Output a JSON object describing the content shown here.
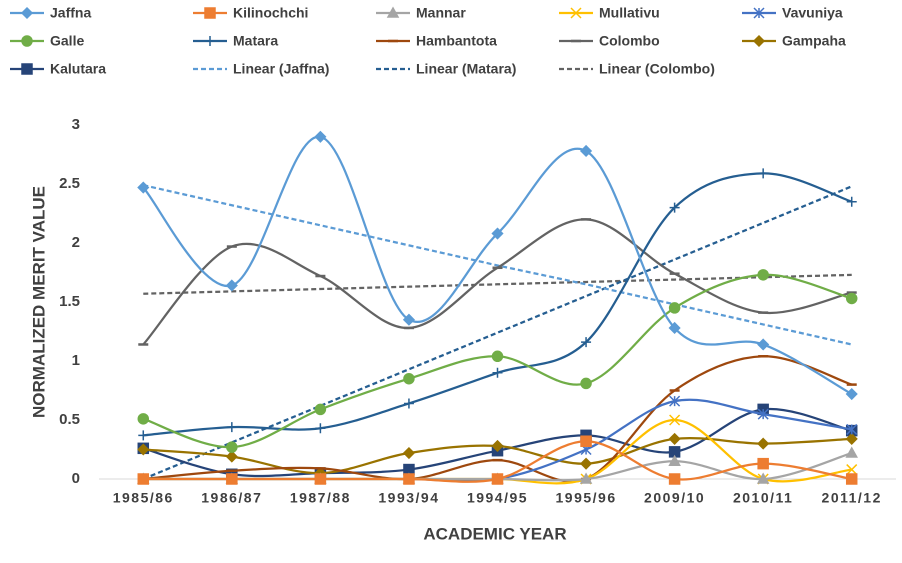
{
  "chart_data": {
    "type": "line",
    "smooth": true,
    "x_label": "ACADEMIC YEAR",
    "y_label": "NORMALIZED MERIT VALUE",
    "categories": [
      "1985/86",
      "1986/87",
      "1987/88",
      "1993/94",
      "1994/95",
      "1995/96",
      "2009/10",
      "2010/11",
      "2011/12"
    ],
    "ylim": [
      0,
      3
    ],
    "yticks": [
      0,
      0.5,
      1,
      1.5,
      2,
      2.5,
      3
    ],
    "grid": false,
    "legend": "top",
    "series": [
      {
        "name": "Jaffna",
        "color": "#5b9bd5",
        "marker": "diamond",
        "values": [
          2.47,
          1.64,
          2.9,
          1.35,
          2.08,
          2.78,
          1.28,
          1.14,
          0.72
        ]
      },
      {
        "name": "Kilinochchi",
        "color": "#ed7d31",
        "marker": "square",
        "values": [
          0,
          0,
          0,
          0,
          0,
          0.32,
          0,
          0.13,
          0
        ]
      },
      {
        "name": "Mannar",
        "color": "#a5a5a5",
        "marker": "triangle",
        "values": [
          0,
          0,
          0,
          0,
          0,
          0,
          0.15,
          0,
          0.22
        ]
      },
      {
        "name": "Mullativu",
        "color": "#ffc000",
        "marker": "x",
        "values": [
          0,
          0,
          0,
          0,
          0,
          0,
          0.5,
          0,
          0.08
        ]
      },
      {
        "name": "Vavuniya",
        "color": "#4472c4",
        "marker": "star",
        "values": [
          0,
          0,
          0,
          0,
          0,
          0.25,
          0.66,
          0.55,
          0.42
        ]
      },
      {
        "name": "Galle",
        "color": "#70ad47",
        "marker": "circle",
        "values": [
          0.51,
          0.27,
          0.59,
          0.85,
          1.04,
          0.81,
          1.45,
          1.73,
          1.53
        ]
      },
      {
        "name": "Matara",
        "color": "#255e91",
        "marker": "plus",
        "values": [
          0.37,
          0.44,
          0.43,
          0.64,
          0.9,
          1.16,
          2.3,
          2.59,
          2.35
        ]
      },
      {
        "name": "Hambantota",
        "color": "#9e480e",
        "marker": "dash",
        "values": [
          0,
          0.07,
          0.09,
          0,
          0.16,
          0,
          0.75,
          1.04,
          0.8
        ]
      },
      {
        "name": "Colombo",
        "color": "#636363",
        "marker": "dash",
        "values": [
          1.14,
          1.97,
          1.72,
          1.28,
          1.79,
          2.2,
          1.74,
          1.41,
          1.58
        ]
      },
      {
        "name": "Gampaha",
        "color": "#997300",
        "marker": "diamond",
        "values": [
          0.25,
          0.19,
          0.05,
          0.22,
          0.28,
          0.13,
          0.34,
          0.3,
          0.34
        ]
      },
      {
        "name": "Kalutara",
        "color": "#264478",
        "marker": "square",
        "values": [
          0.26,
          0.04,
          0.05,
          0.08,
          0.24,
          0.37,
          0.23,
          0.59,
          0.41
        ]
      },
      {
        "name": "Linear (Jaffna)",
        "color": "#5b9bd5",
        "dashed": true,
        "values": [
          2.49,
          2.32,
          2.15,
          1.98,
          1.81,
          1.65,
          1.48,
          1.31,
          1.14
        ]
      },
      {
        "name": "Linear (Matara)",
        "color": "#255e91",
        "dashed": true,
        "values": [
          0,
          0.31,
          0.62,
          0.93,
          1.24,
          1.55,
          1.86,
          2.17,
          2.48
        ]
      },
      {
        "name": "Linear (Colombo)",
        "color": "#636363",
        "dashed": true,
        "values": [
          1.57,
          1.59,
          1.61,
          1.63,
          1.65,
          1.67,
          1.69,
          1.71,
          1.73
        ]
      }
    ]
  }
}
